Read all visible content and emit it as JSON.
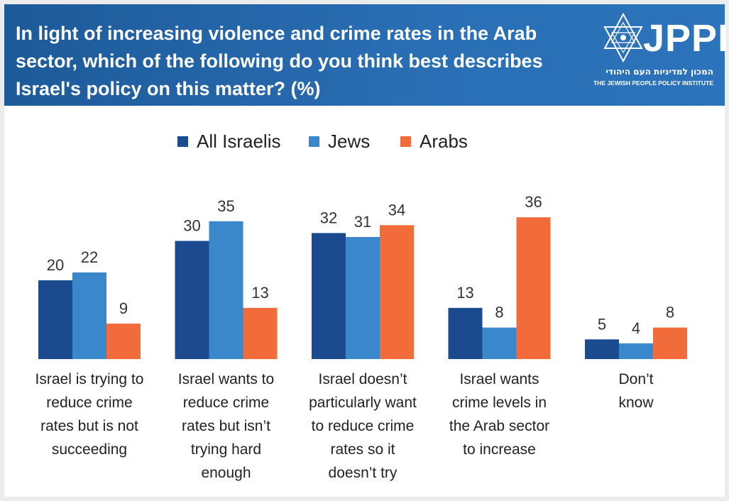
{
  "header": {
    "title": "In light of increasing violence and crime rates in the Arab sector, which of the following do you think best describes Israel's policy on this matter? (%)",
    "logo": {
      "name": "JPPI",
      "hebrew": "המכון למדיניות העם היהודי",
      "english": "THE JEWISH PEOPLE POLICY INSTITUTE"
    }
  },
  "chart_data": {
    "type": "bar",
    "title": "In light of increasing violence and crime rates in the Arab sector, which of the following do you think best describes Israel's policy on this matter? (%)",
    "categories": [
      [
        "Israel is trying to",
        "reduce crime",
        "rates but is not",
        "succeeding"
      ],
      [
        "Israel wants to",
        "reduce crime",
        "rates but isn’t",
        "trying hard",
        "enough"
      ],
      [
        "Israel doesn’t",
        "particularly want",
        "to reduce crime",
        "rates so it",
        "doesn’t try"
      ],
      [
        "Israel wants",
        "crime levels in",
        "the Arab sector",
        "to increase"
      ],
      [
        "Don’t",
        "know"
      ]
    ],
    "series": [
      {
        "name": "All Israelis",
        "color": "#1b4a8f",
        "values": [
          20,
          30,
          32,
          13,
          5
        ]
      },
      {
        "name": "Jews",
        "color": "#3b87cb",
        "values": [
          22,
          35,
          31,
          8,
          4
        ]
      },
      {
        "name": "Arabs",
        "color": "#f26b3a",
        "values": [
          9,
          13,
          34,
          36,
          8
        ]
      }
    ],
    "ylim": [
      0,
      40
    ],
    "grid": false,
    "legend_position": "top-center",
    "data_labels": true
  }
}
